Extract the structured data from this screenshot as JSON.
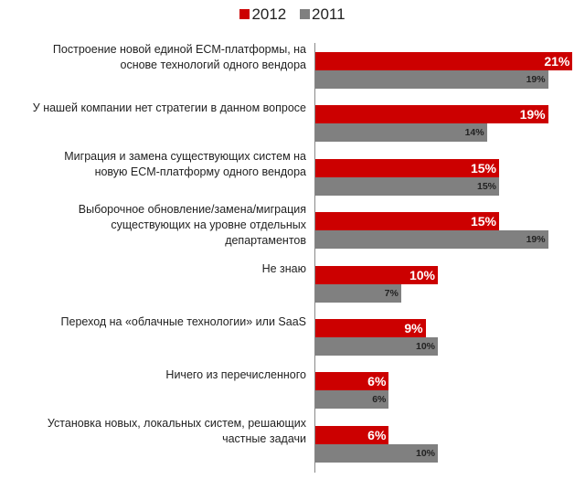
{
  "chart_data": {
    "type": "bar",
    "orientation": "horizontal",
    "title": "",
    "xlabel": "",
    "ylabel": "",
    "xlim": [
      0,
      21
    ],
    "legend_position": "top-center",
    "categories": [
      "Построение новой единой ECM-платформы, на основе технологий одного вендора",
      "У нашей компании нет стратегии в данном вопросе",
      "Миграция и замена существующих систем на новую ECM-платформу одного вендора",
      "Выборочное обновление/замена/миграция существующих на уровне отдельных департаментов",
      "Не знаю",
      "Переход на «облачные технологии» или SaaS",
      "Ничего из перечисленного",
      "Установка новых, локальных систем, решающих частные задачи"
    ],
    "series": [
      {
        "name": "2012",
        "color": "#cc0000",
        "values": [
          21,
          19,
          15,
          15,
          10,
          9,
          6,
          6
        ],
        "labels": [
          "21%",
          "19%",
          "15%",
          "15%",
          "10%",
          "9%",
          "6%",
          "6%"
        ]
      },
      {
        "name": "2011",
        "color": "#808080",
        "values": [
          19,
          14,
          15,
          19,
          7,
          10,
          6,
          10
        ],
        "labels": [
          "19%",
          "14%",
          "15%",
          "19%",
          "7%",
          "10%",
          "6%",
          "10%"
        ]
      }
    ]
  }
}
